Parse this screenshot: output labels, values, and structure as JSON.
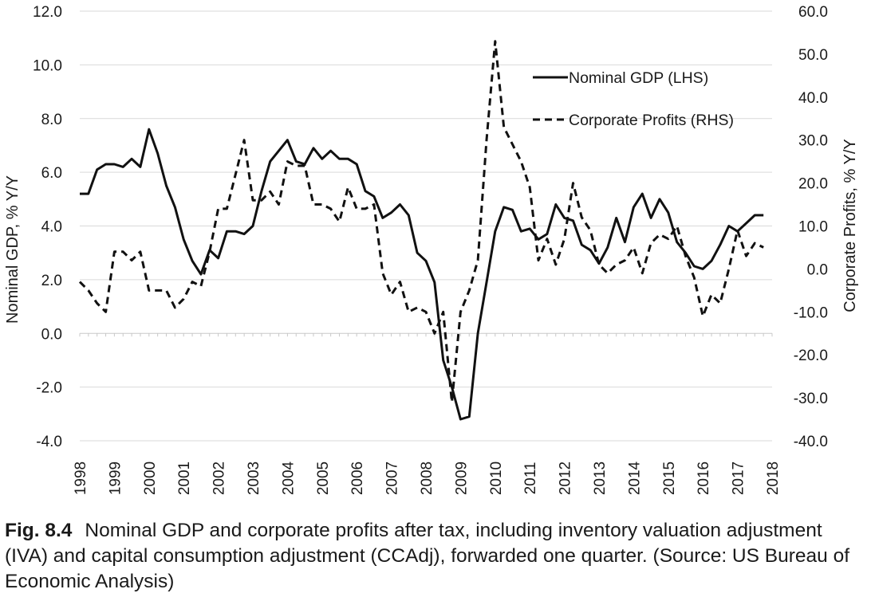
{
  "chart_data": {
    "type": "line",
    "left_axis": {
      "label": "Nominal GDP, % Y/Y",
      "range": [
        -4.0,
        12.0
      ],
      "ticks": [
        "12.0",
        "10.0",
        "8.0",
        "6.0",
        "4.0",
        "2.0",
        "0.0",
        "-2.0",
        "-4.0"
      ],
      "tick_values": [
        12,
        10,
        8,
        6,
        4,
        2,
        0,
        -2,
        -4
      ]
    },
    "right_axis": {
      "label": "Corporate Profits, % Y/Y",
      "range": [
        -40.0,
        60.0
      ],
      "ticks": [
        "60.0",
        "50.0",
        "40.0",
        "30.0",
        "20.0",
        "10.0",
        "0.0",
        "-10.0",
        "-20.0",
        "-30.0",
        "-40.0"
      ],
      "tick_values": [
        60,
        50,
        40,
        30,
        20,
        10,
        0,
        -10,
        -20,
        -30,
        -40
      ]
    },
    "x_axis": {
      "range": [
        1998,
        2018
      ],
      "ticks": [
        "1998",
        "1999",
        "2000",
        "2001",
        "2002",
        "2003",
        "2004",
        "2005",
        "2006",
        "2007",
        "2008",
        "2009",
        "2010",
        "2011",
        "2012",
        "2013",
        "2014",
        "2015",
        "2016",
        "2017",
        "2018"
      ]
    },
    "grid": "horizontal",
    "legend_position": "top-right",
    "series": [
      {
        "name": "Nominal GDP (LHS)",
        "axis": "left",
        "style": "solid",
        "x": [
          1998.0,
          1998.25,
          1998.5,
          1998.75,
          1999.0,
          1999.25,
          1999.5,
          1999.75,
          2000.0,
          2000.25,
          2000.5,
          2000.75,
          2001.0,
          2001.25,
          2001.5,
          2001.75,
          2002.0,
          2002.25,
          2002.5,
          2002.75,
          2003.0,
          2003.25,
          2003.5,
          2003.75,
          2004.0,
          2004.25,
          2004.5,
          2004.75,
          2005.0,
          2005.25,
          2005.5,
          2005.75,
          2006.0,
          2006.25,
          2006.5,
          2006.75,
          2007.0,
          2007.25,
          2007.5,
          2007.75,
          2008.0,
          2008.25,
          2008.5,
          2008.75,
          2009.0,
          2009.25,
          2009.5,
          2009.75,
          2010.0,
          2010.25,
          2010.5,
          2010.75,
          2011.0,
          2011.25,
          2011.5,
          2011.75,
          2012.0,
          2012.25,
          2012.5,
          2012.75,
          2013.0,
          2013.25,
          2013.5,
          2013.75,
          2014.0,
          2014.25,
          2014.5,
          2014.75,
          2015.0,
          2015.25,
          2015.5,
          2015.75,
          2016.0,
          2016.25,
          2016.5,
          2016.75,
          2017.0,
          2017.25,
          2017.5,
          2017.75
        ],
        "values": [
          5.2,
          5.2,
          6.1,
          6.3,
          6.3,
          6.2,
          6.5,
          6.2,
          7.6,
          6.7,
          5.5,
          4.7,
          3.5,
          2.7,
          2.2,
          3.1,
          2.8,
          3.8,
          3.8,
          3.7,
          4.0,
          5.3,
          6.4,
          6.8,
          7.2,
          6.4,
          6.3,
          6.9,
          6.5,
          6.8,
          6.5,
          6.5,
          6.3,
          5.3,
          5.1,
          4.3,
          4.5,
          4.8,
          4.4,
          3.0,
          2.7,
          1.9,
          -1.0,
          -2.0,
          -3.2,
          -3.1,
          0.0,
          1.9,
          3.8,
          4.7,
          4.6,
          3.8,
          3.9,
          3.5,
          3.7,
          4.8,
          4.3,
          4.2,
          3.3,
          3.1,
          2.6,
          3.2,
          4.3,
          3.4,
          4.7,
          5.2,
          4.3,
          5.0,
          4.5,
          3.4,
          3.0,
          2.5,
          2.4,
          2.7,
          3.3,
          4.0,
          3.8,
          4.1,
          4.4,
          4.4
        ]
      },
      {
        "name": "Corporate Profits (RHS)",
        "axis": "right",
        "style": "dashed",
        "x": [
          1998.0,
          1998.25,
          1998.5,
          1998.75,
          1999.0,
          1999.25,
          1999.5,
          1999.75,
          2000.0,
          2000.25,
          2000.5,
          2000.75,
          2001.0,
          2001.25,
          2001.5,
          2001.75,
          2002.0,
          2002.25,
          2002.5,
          2002.75,
          2003.0,
          2003.25,
          2003.5,
          2003.75,
          2004.0,
          2004.25,
          2004.5,
          2004.75,
          2005.0,
          2005.25,
          2005.5,
          2005.75,
          2006.0,
          2006.25,
          2006.5,
          2006.75,
          2007.0,
          2007.25,
          2007.5,
          2007.75,
          2008.0,
          2008.25,
          2008.5,
          2008.75,
          2009.0,
          2009.25,
          2009.5,
          2009.75,
          2010.0,
          2010.25,
          2010.5,
          2010.75,
          2011.0,
          2011.25,
          2011.5,
          2011.75,
          2012.0,
          2012.25,
          2012.5,
          2012.75,
          2013.0,
          2013.25,
          2013.5,
          2013.75,
          2014.0,
          2014.25,
          2014.5,
          2014.75,
          2015.0,
          2015.25,
          2015.5,
          2015.75,
          2016.0,
          2016.25,
          2016.5,
          2016.75,
          2017.0,
          2017.25,
          2017.5,
          2017.75
        ],
        "values": [
          -3,
          -5,
          -8,
          -10,
          4,
          4,
          2,
          4,
          -5,
          -5,
          -5,
          -9,
          -7,
          -3,
          -4,
          4,
          14,
          14,
          22,
          30,
          16,
          16,
          18,
          15,
          25,
          24,
          24,
          15,
          15,
          14,
          11,
          19,
          14,
          14,
          15,
          -1,
          -6,
          -3,
          -10,
          -9,
          -10,
          -15,
          -10,
          -31,
          -10,
          -5,
          2,
          30,
          53,
          33,
          29,
          25,
          19,
          2,
          7,
          1,
          7,
          20,
          12,
          9,
          1,
          -1,
          1,
          2,
          5,
          -1,
          6,
          8,
          7,
          10,
          3,
          -2,
          -11,
          -6,
          -8,
          0,
          9,
          3,
          6,
          5
        ]
      }
    ]
  },
  "caption": {
    "label": "Fig. 8.4",
    "text": "Nominal GDP and corporate profits after tax, including inventory valuation adjustment (IVA) and capital consumption adjustment (CCAdj), forwarded one quarter. (Source: US Bureau of Economic Analysis)"
  }
}
